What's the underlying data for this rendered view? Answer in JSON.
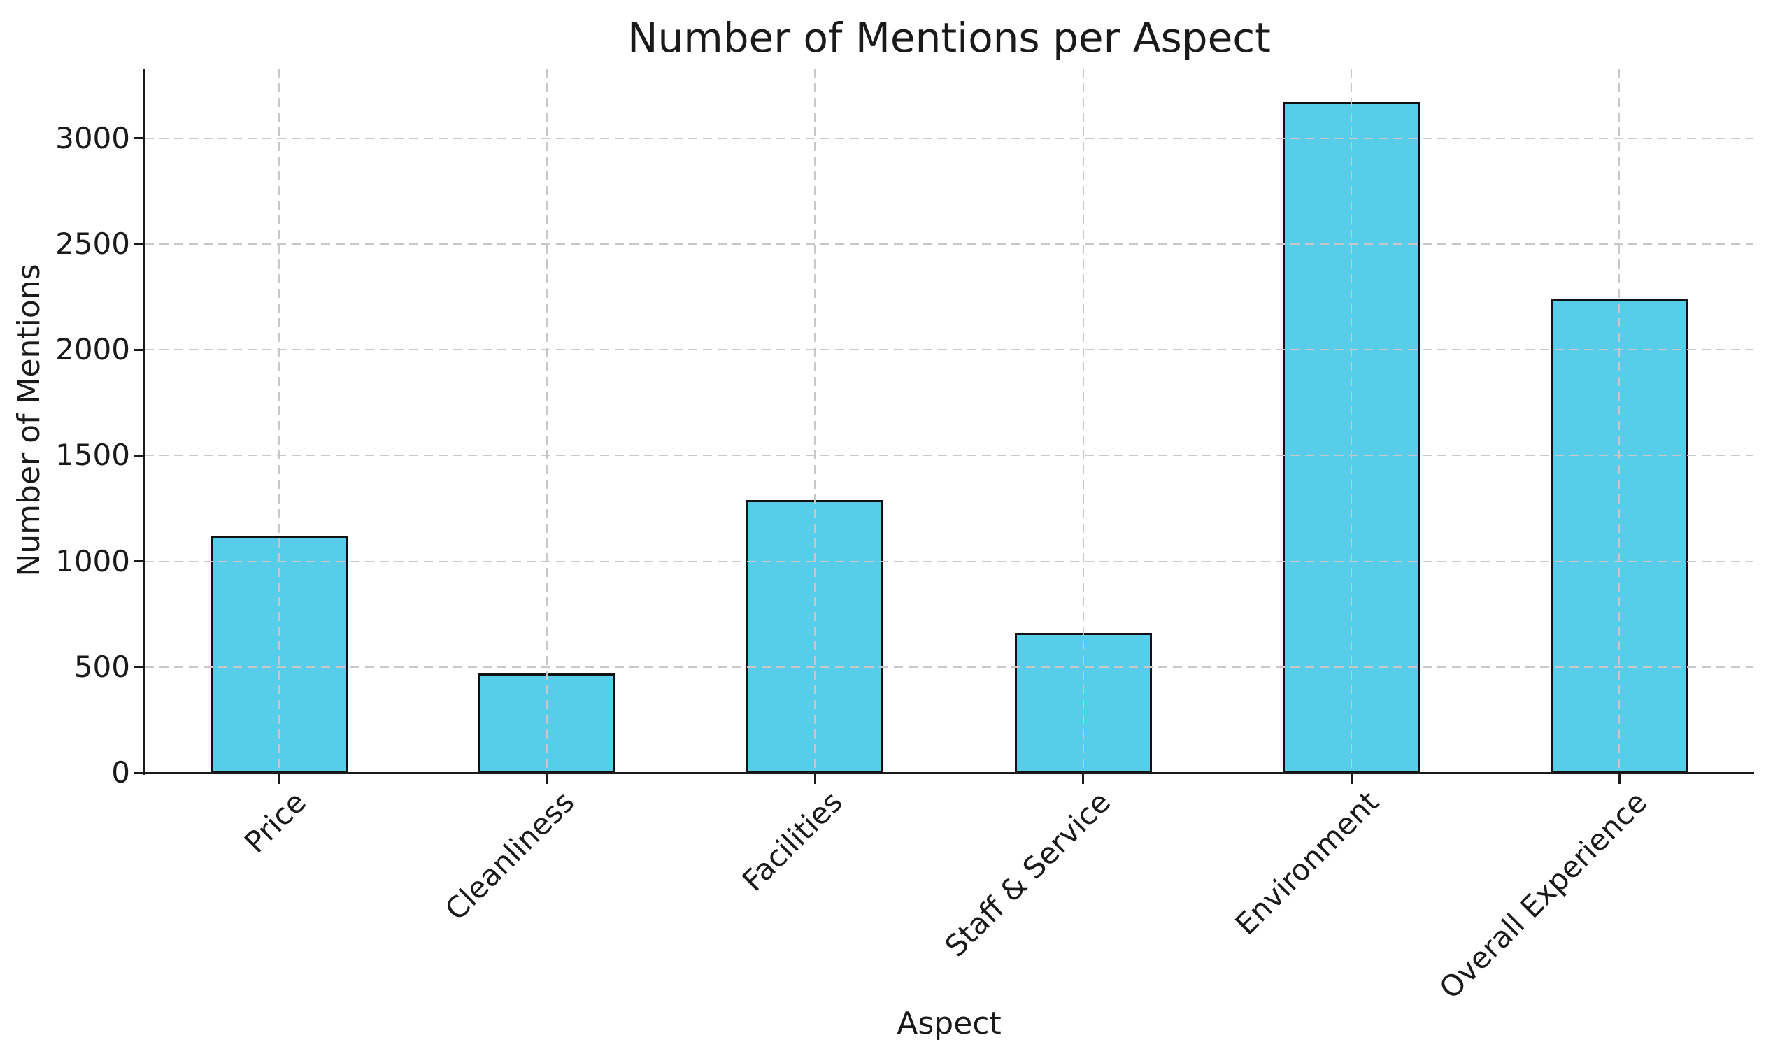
{
  "chart_data": {
    "type": "bar",
    "title": "Number of Mentions per Aspect",
    "xlabel": "Aspect",
    "ylabel": "Number of Mentions",
    "categories": [
      "Price",
      "Cleanliness",
      "Facilities",
      "Staff & Service",
      "Environment",
      "Overall Experience"
    ],
    "values": [
      1120,
      470,
      1290,
      660,
      3170,
      2240
    ],
    "yticks": [
      0,
      500,
      1000,
      1500,
      2000,
      2500,
      3000
    ],
    "ylim": [
      0,
      3330
    ],
    "xtick_rotation_deg": 45,
    "grid": true,
    "grid_style": "dashed",
    "legend": "none",
    "colors": {
      "bar_fill": "#58CDE9",
      "bar_edge": "#111111",
      "grid_line": "#c8c8c8",
      "axis_and_text": "#1a1a1a",
      "background": "#ffffff"
    }
  }
}
